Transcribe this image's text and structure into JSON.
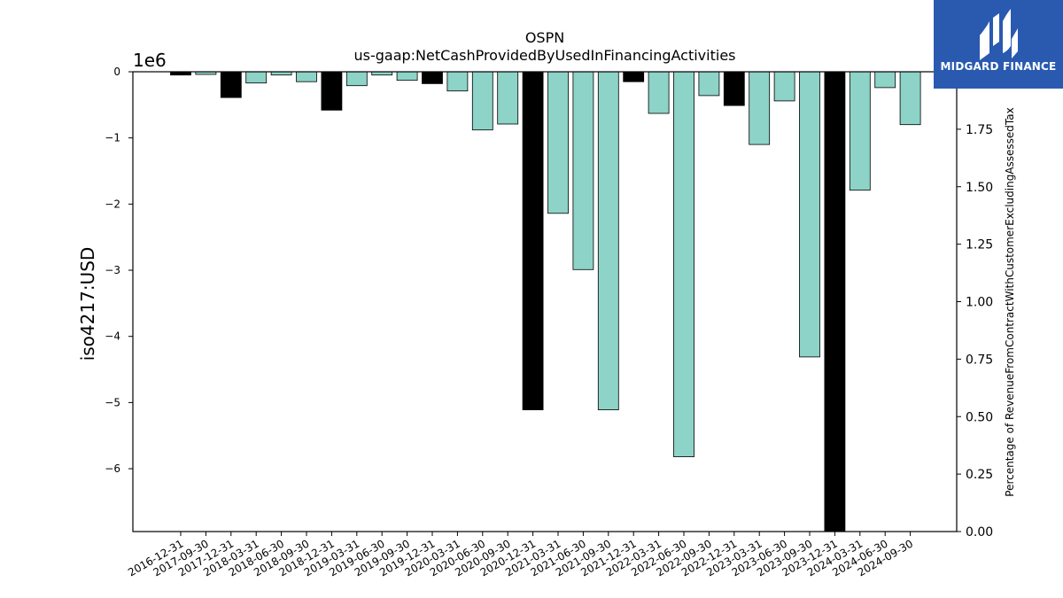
{
  "chart_data": {
    "type": "bar",
    "title": "OSPN",
    "subtitle": "us-gaap:NetCashProvidedByUsedInFinancingActivities",
    "ylabel": "iso4217:USD",
    "y2label": "Percentage of RevenueFromContractWithCustomerExcludingAssessedTax",
    "y_multiplier": "1e6",
    "ylim": [
      -6.95,
      0
    ],
    "y2lim": [
      0,
      2
    ],
    "y_ticks": [
      0,
      -1,
      -2,
      -3,
      -4,
      -5,
      -6
    ],
    "y_tick_labels": [
      "0",
      "−1",
      "−2",
      "−3",
      "−4",
      "−5",
      "−6"
    ],
    "y2_ticks": [
      0,
      0.25,
      0.5,
      0.75,
      1.0,
      1.25,
      1.5,
      1.75
    ],
    "y2_tick_labels": [
      "0.00",
      "0.25",
      "0.50",
      "0.75",
      "1.00",
      "1.25",
      "1.50",
      "1.75"
    ],
    "categories": [
      "2016-12-31",
      "2017-09-30",
      "2017-12-31",
      "2018-03-31",
      "2018-06-30",
      "2018-09-30",
      "2018-12-31",
      "2019-03-31",
      "2019-06-30",
      "2019-09-30",
      "2019-12-31",
      "2020-03-31",
      "2020-06-30",
      "2020-09-30",
      "2020-12-31",
      "2021-03-31",
      "2021-06-30",
      "2021-09-30",
      "2021-12-31",
      "2022-03-31",
      "2022-06-30",
      "2022-09-30",
      "2022-12-31",
      "2023-03-31",
      "2023-06-30",
      "2023-09-30",
      "2023-12-31",
      "2024-03-31",
      "2024-06-30",
      "2024-09-30"
    ],
    "values": [
      -0.05,
      -0.04,
      -0.39,
      -0.17,
      -0.05,
      -0.15,
      -0.58,
      -0.21,
      -0.05,
      -0.13,
      -0.18,
      -0.29,
      -0.88,
      -0.79,
      -5.11,
      -2.14,
      -2.99,
      -5.11,
      -0.15,
      -0.63,
      -5.82,
      -0.36,
      -0.51,
      -1.1,
      -0.44,
      -4.31,
      -6.95,
      -1.79,
      -0.24,
      -0.8
    ],
    "bar_colors": [
      "#000000",
      "#8dd3c7",
      "#000000",
      "#8dd3c7",
      "#8dd3c7",
      "#8dd3c7",
      "#000000",
      "#8dd3c7",
      "#8dd3c7",
      "#8dd3c7",
      "#000000",
      "#8dd3c7",
      "#8dd3c7",
      "#8dd3c7",
      "#000000",
      "#8dd3c7",
      "#8dd3c7",
      "#8dd3c7",
      "#000000",
      "#8dd3c7",
      "#8dd3c7",
      "#8dd3c7",
      "#000000",
      "#8dd3c7",
      "#8dd3c7",
      "#8dd3c7",
      "#000000",
      "#8dd3c7",
      "#8dd3c7",
      "#8dd3c7"
    ],
    "grid": false,
    "legend": "none"
  },
  "logo": {
    "text": "MIDGARD FINANCE",
    "color": "#2a5ab0"
  }
}
